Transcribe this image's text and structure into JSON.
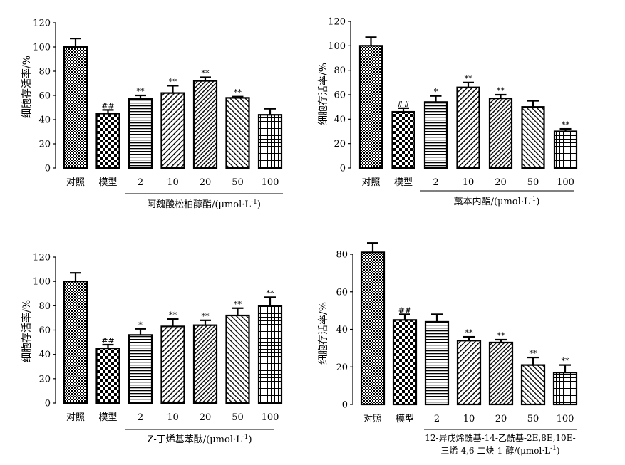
{
  "y_label": "细胞存活率/%",
  "panels": [
    {
      "id": "a",
      "compound_label": "阿魏酸松柏醇酯/(μmol·L",
      "unit_suffix": "-1",
      "unit_close": ")",
      "chart_data": {
        "type": "bar",
        "categories": [
          "对照",
          "模型",
          "2",
          "10",
          "20",
          "50",
          "100"
        ],
        "values": [
          100,
          45,
          57,
          62,
          72,
          58,
          44
        ],
        "errors": [
          7,
          3,
          3,
          6,
          3,
          1,
          5
        ],
        "annotations": [
          "",
          "##",
          "**",
          "**",
          "**",
          "**",
          ""
        ],
        "ylim": [
          0,
          120
        ],
        "yticks": [
          0,
          20,
          40,
          60,
          80,
          100,
          120
        ],
        "ylabel": "细胞存活率/%",
        "xlabel": "阿魏酸松柏醇酯/(μmol·L-1)"
      }
    },
    {
      "id": "b",
      "compound_label": "藁本内酯/(μmol·L",
      "unit_suffix": "-1",
      "unit_close": ")",
      "chart_data": {
        "type": "bar",
        "categories": [
          "对照",
          "模型",
          "2",
          "10",
          "20",
          "50",
          "100"
        ],
        "values": [
          100,
          46,
          54,
          66,
          57,
          50,
          30
        ],
        "errors": [
          7,
          3,
          5,
          4,
          3,
          5,
          2
        ],
        "annotations": [
          "",
          "##",
          "*",
          "**",
          "**",
          "",
          "**"
        ],
        "ylim": [
          0,
          120
        ],
        "yticks": [
          0,
          20,
          40,
          60,
          80,
          100,
          120
        ],
        "ylabel": "细胞存活率/%",
        "xlabel": "藁本内酯/(μmol·L-1)"
      }
    },
    {
      "id": "c",
      "compound_label": "Z-丁烯基苯酞/(μmol·L",
      "unit_suffix": "-1",
      "unit_close": ")",
      "chart_data": {
        "type": "bar",
        "categories": [
          "对照",
          "模型",
          "2",
          "10",
          "20",
          "50",
          "100"
        ],
        "values": [
          100,
          45,
          56,
          63,
          64,
          72,
          80
        ],
        "errors": [
          7,
          3,
          5,
          6,
          4,
          6,
          7
        ],
        "annotations": [
          "",
          "##",
          "*",
          "**",
          "**",
          "**",
          "**"
        ],
        "ylim": [
          0,
          120
        ],
        "yticks": [
          0,
          20,
          40,
          60,
          80,
          100,
          120
        ],
        "ylabel": "细胞存活率/%",
        "xlabel": "Z-丁烯基苯酞/(μmol·L-1)"
      }
    },
    {
      "id": "d",
      "compound_label": "12-异戊烯酰基-14-乙酰基-2E,8E,10E-",
      "compound_label_2": "三烯-4,6-二炔-1-醇/(μmol·L",
      "unit_suffix": "-1",
      "unit_close": ")",
      "chart_data": {
        "type": "bar",
        "categories": [
          "对照",
          "模型",
          "2",
          "10",
          "20",
          "50",
          "100"
        ],
        "values": [
          81,
          45,
          44,
          34,
          33,
          21,
          17
        ],
        "errors": [
          5,
          3,
          4,
          2,
          1.5,
          4,
          4
        ],
        "annotations": [
          "",
          "##",
          "",
          "**",
          "**",
          "**",
          "**"
        ],
        "ylim": [
          0,
          80
        ],
        "yticks": [
          0,
          20,
          40,
          60,
          80
        ],
        "ylabel": "细胞存活率/%",
        "xlabel": "12-异戊烯酰基-14-乙酰基-2E,8E,10E-三烯-4,6-二炔-1-醇/(μmol·L-1)"
      }
    }
  ]
}
